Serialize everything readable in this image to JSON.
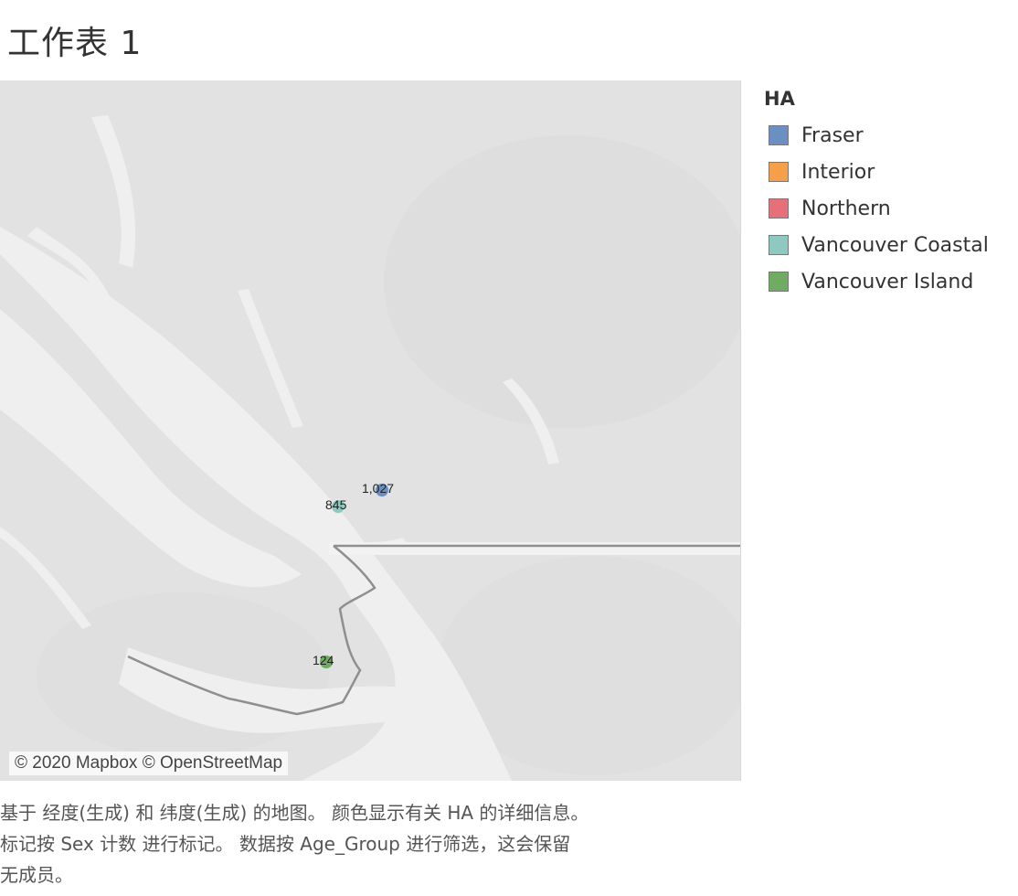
{
  "sheet_title": "工作表 1",
  "map": {
    "attribution": "© 2020 Mapbox © OpenStreetMap",
    "marks": [
      {
        "label": "1,027",
        "region": "Fraser",
        "color": "#6a8fc0"
      },
      {
        "label": "845",
        "region": "Vancouver Coastal",
        "color": "#8ec9c1"
      },
      {
        "label": "124",
        "region": "Vancouver Island",
        "color": "#6fab62"
      }
    ]
  },
  "legend": {
    "title": "HA",
    "items": [
      {
        "label": "Fraser",
        "color": "#6a8fc0"
      },
      {
        "label": "Interior",
        "color": "#f4a04a"
      },
      {
        "label": "Northern",
        "color": "#e5707a"
      },
      {
        "label": "Vancouver Coastal",
        "color": "#8ec9c1"
      },
      {
        "label": "Vancouver Island",
        "color": "#6fab62"
      }
    ]
  },
  "caption": {
    "line1": "基于 经度(生成) 和 纬度(生成) 的地图。 颜色显示有关 HA 的详细信息。",
    "line2": "标记按 Sex 计数 进行标记。 数据按 Age_Group 进行筛选，这会保留",
    "line3": "无成员。"
  }
}
